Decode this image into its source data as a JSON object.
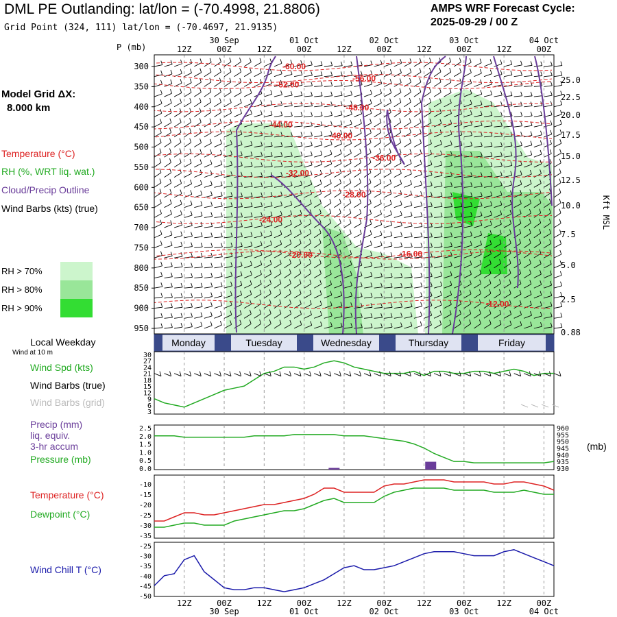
{
  "header": {
    "title": "DML PE Outlanding:  lat/lon = (-70.4998, 21.8806)",
    "subtitle": "Grid Point (324, 111) lat/lon = (-70.4697, 21.9135)",
    "cycle_line1": "AMPS WRF Forecast Cycle:",
    "cycle_line2": "2025-09-29 / 00  Z",
    "grid_line1": "Model Grid ΔX:",
    "grid_line2": "8.000 km"
  },
  "legend": {
    "temperature": "Temperature (°C)",
    "rh": "RH (%, WRT liq. wat.)",
    "cloud": "Cloud/Precip Outline",
    "wind": "Wind Barbs (kts) (true)",
    "rh70": "RH > 70%",
    "rh80": "RH > 80%",
    "rh90": "RH > 90%"
  },
  "colors": {
    "temperature": "#dd2222",
    "rh": "#22aa22",
    "cloud": "#6a3d9a",
    "rh70": "#ccf5cc",
    "rh80": "#99e699",
    "rh90": "#33dd33",
    "windchill": "#1a1aaa",
    "precip": "#6a3d9a",
    "day_band": "#3a4a8a",
    "grid": "#999999"
  },
  "panels": {
    "weekday_title": "Local Weekday",
    "wind_at": "Wind at 10 m",
    "wind_spd": "Wind Spd (kts)",
    "barbs_true": "Wind Barbs (true)",
    "barbs_grid": "Wind Barbs (grid)",
    "precip1": "Precip (mm)",
    "precip2": "liq. equiv.",
    "precip3": "3-hr accum",
    "pressure": "Pressure (mb)",
    "pressure_unit": "(mb)",
    "temp": "Temperature (°C)",
    "dew": "Dewpoint (°C)",
    "windchill": "Wind Chill T (°C)"
  },
  "chart_data": [
    {
      "type": "time-height",
      "y_label": "P (mb)",
      "right_label": "Kft MSL",
      "pressure_ticks": [
        300,
        350,
        400,
        450,
        500,
        550,
        600,
        650,
        700,
        750,
        800,
        850,
        900,
        950
      ],
      "kft_ticks": [
        "25.0",
        "22.5",
        "20.0",
        "17.5",
        "15.0",
        "12.5",
        "10.0",
        "7.5",
        "5.0",
        "2.5",
        "0.88"
      ],
      "time_hour_ticks": [
        "12Z",
        "00Z",
        "12Z",
        "00Z",
        "12Z",
        "00Z",
        "12Z",
        "00Z",
        "12Z",
        "00Z"
      ],
      "date_ticks": [
        "30 Sep",
        "01 Oct",
        "02 Oct",
        "03 Oct",
        "04 Oct"
      ],
      "x_range_hours": [
        3,
        123
      ],
      "temperature_labels": [
        {
          "value": "-60.00",
          "t": 45,
          "p": 300
        },
        {
          "value": "-56.00",
          "t": 66,
          "p": 330
        },
        {
          "value": "-52.00",
          "t": 43,
          "p": 345
        },
        {
          "value": "-48.00",
          "t": 64,
          "p": 402
        },
        {
          "value": "-44.00",
          "t": 41,
          "p": 445
        },
        {
          "value": "-40.00",
          "t": 59,
          "p": 472
        },
        {
          "value": "-36.00",
          "t": 72,
          "p": 527
        },
        {
          "value": "-32.00",
          "t": 46,
          "p": 565
        },
        {
          "value": "-28.00",
          "t": 63,
          "p": 618
        },
        {
          "value": "-24.00",
          "t": 38,
          "p": 680
        },
        {
          "value": "-20.00",
          "t": 47,
          "p": 768
        },
        {
          "value": "-16.00",
          "t": 80,
          "p": 765
        },
        {
          "value": "-12.00",
          "t": 106,
          "p": 890
        }
      ]
    },
    {
      "type": "line",
      "title": "Wind Spd (kts)",
      "y_ticks": [
        3,
        6,
        9,
        12,
        15,
        18,
        21,
        24,
        27,
        30
      ],
      "ylim": [
        3,
        30
      ],
      "x_hours": [
        3,
        6,
        9,
        12,
        15,
        18,
        21,
        24,
        27,
        30,
        33,
        36,
        39,
        42,
        45,
        48,
        51,
        54,
        57,
        60,
        63,
        66,
        69,
        72,
        75,
        78,
        81,
        84,
        87,
        90,
        93,
        96,
        99,
        102,
        105,
        108,
        111,
        114,
        117,
        120,
        123
      ],
      "values": [
        9,
        7,
        6,
        5,
        7,
        9,
        11,
        13,
        14,
        15,
        18,
        21,
        22,
        24,
        24,
        23,
        24,
        26,
        27,
        26,
        24,
        23,
        22,
        21,
        21,
        21,
        22,
        20,
        22,
        22,
        21,
        21,
        22,
        22,
        21,
        22,
        23,
        22,
        20,
        21,
        21
      ]
    },
    {
      "type": "line+bar",
      "precip_y_ticks": [
        "0.0",
        "0.5",
        "1.0",
        "1.5",
        "2.0",
        "2.5"
      ],
      "pressure_y_ticks": [
        930,
        935,
        940,
        945,
        950,
        955,
        960
      ],
      "pressure_lim": [
        930,
        960
      ],
      "pressure_values": [
        954,
        954,
        954,
        953,
        953,
        953,
        953,
        953,
        953,
        953,
        954,
        954,
        954,
        954,
        955,
        955,
        955,
        955,
        955,
        954,
        954,
        954,
        953,
        952,
        951,
        950,
        948,
        945,
        941,
        938,
        935,
        935,
        934,
        934,
        934,
        934,
        934,
        934,
        934,
        934,
        935
      ],
      "precip_bars": [
        {
          "t": 86,
          "mm": 0.4
        },
        {
          "t": 57,
          "mm": 0.02
        }
      ]
    },
    {
      "type": "line",
      "y_ticks": [
        -35,
        -30,
        -25,
        -20,
        -15,
        -10
      ],
      "ylim": [
        -35,
        -7
      ],
      "temperature": [
        -28,
        -28,
        -26,
        -24,
        -24,
        -25,
        -25,
        -24,
        -23,
        -22,
        -21,
        -20,
        -20,
        -19,
        -18,
        -17,
        -15,
        -12,
        -12,
        -14,
        -14,
        -14,
        -14,
        -11,
        -10,
        -10,
        -9,
        -8,
        -8,
        -8,
        -9,
        -9,
        -9,
        -9,
        -10,
        -10,
        -9,
        -9,
        -10,
        -11,
        -13
      ],
      "dewpoint": [
        -31,
        -31,
        -30,
        -29,
        -29,
        -30,
        -30,
        -30,
        -28,
        -27,
        -26,
        -25,
        -24,
        -23,
        -23,
        -22,
        -20,
        -18,
        -17,
        -19,
        -19,
        -19,
        -19,
        -16,
        -14,
        -13,
        -12,
        -12,
        -12,
        -12,
        -13,
        -13,
        -13,
        -13,
        -14,
        -14,
        -14,
        -13,
        -14,
        -15,
        -15
      ]
    },
    {
      "type": "line",
      "title": "Wind Chill T (°C)",
      "y_ticks": [
        -50,
        -45,
        -40,
        -35,
        -30,
        -25
      ],
      "ylim": [
        -50,
        -25
      ],
      "values": [
        -45,
        -40,
        -39,
        -32,
        -30,
        -38,
        -42,
        -46,
        -47,
        -47,
        -46,
        -46,
        -47,
        -48,
        -47,
        -46,
        -44,
        -42,
        -39,
        -36,
        -35,
        -37,
        -37,
        -36,
        -35,
        -33,
        -31,
        -29,
        -28,
        -28,
        -28,
        -29,
        -30,
        -30,
        -30,
        -28,
        -27,
        -29,
        -31,
        -33,
        -35
      ]
    }
  ],
  "weekdays": [
    "Monday",
    "Tuesday",
    "Wednesday",
    "Thursday",
    "Friday"
  ]
}
